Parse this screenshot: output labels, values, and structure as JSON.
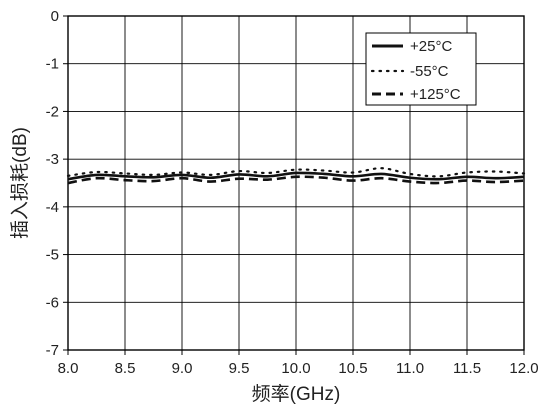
{
  "chart_data": {
    "type": "line",
    "title": "",
    "xlabel": "频率(GHz)",
    "ylabel": "插入损耗(dB)",
    "xlim": [
      8.0,
      12.0
    ],
    "ylim": [
      -7,
      0
    ],
    "x_ticks": [
      "8.0",
      "8.5",
      "9.0",
      "9.5",
      "10.0",
      "10.5",
      "11.0",
      "11.5",
      "12.0"
    ],
    "y_ticks": [
      "0",
      "-1",
      "-2",
      "-3",
      "-4",
      "-5",
      "-6",
      "-7"
    ],
    "grid": true,
    "legend_position": "top-right",
    "x": [
      8.0,
      8.25,
      8.5,
      8.75,
      9.0,
      9.25,
      9.5,
      9.75,
      10.0,
      10.25,
      10.5,
      10.75,
      11.0,
      11.25,
      11.5,
      11.75,
      12.0
    ],
    "series": [
      {
        "name": "+25°C",
        "style": "solid",
        "values": [
          -3.42,
          -3.33,
          -3.36,
          -3.38,
          -3.33,
          -3.39,
          -3.32,
          -3.36,
          -3.29,
          -3.31,
          -3.36,
          -3.31,
          -3.39,
          -3.42,
          -3.37,
          -3.4,
          -3.37
        ]
      },
      {
        "name": "-55°C",
        "style": "dotted",
        "values": [
          -3.35,
          -3.27,
          -3.3,
          -3.33,
          -3.28,
          -3.33,
          -3.25,
          -3.29,
          -3.22,
          -3.24,
          -3.28,
          -3.19,
          -3.31,
          -3.36,
          -3.28,
          -3.26,
          -3.3
        ]
      },
      {
        "name": "+125°C",
        "style": "dashed",
        "values": [
          -3.5,
          -3.4,
          -3.44,
          -3.46,
          -3.4,
          -3.47,
          -3.41,
          -3.43,
          -3.37,
          -3.39,
          -3.45,
          -3.4,
          -3.47,
          -3.5,
          -3.45,
          -3.48,
          -3.45
        ]
      }
    ],
    "colors": {
      "line": "#111111",
      "grid": "#000000",
      "text": "#222222"
    }
  }
}
